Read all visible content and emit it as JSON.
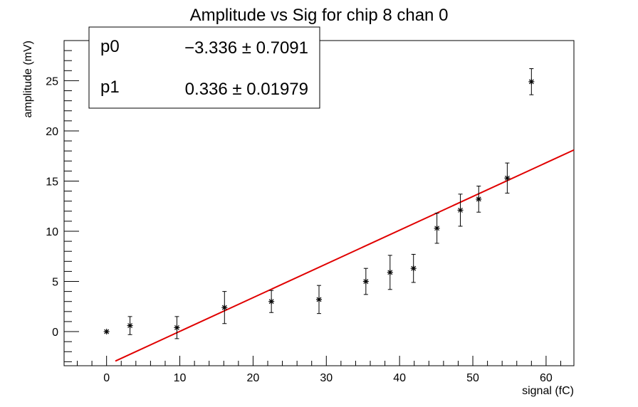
{
  "chart_data": {
    "type": "scatter",
    "title": "Amplitude vs Sig for chip 8 chan 0",
    "xlabel": "signal (fC)",
    "ylabel": "amplitude (mV)",
    "xlim": [
      -5.8,
      63.8
    ],
    "ylim": [
      -3.4,
      29.0
    ],
    "x_ticks": [
      0,
      10,
      20,
      30,
      40,
      50,
      60
    ],
    "y_ticks": [
      0,
      5,
      10,
      15,
      20,
      25
    ],
    "x_tick_labels": [
      "0",
      "10",
      "20",
      "30",
      "40",
      "50",
      "60"
    ],
    "y_tick_labels": [
      "0",
      "5",
      "10",
      "15",
      "20",
      "25"
    ],
    "grid": false,
    "legend": "none",
    "series": [
      {
        "marker_color": "#000000",
        "points": [
          {
            "x": 0.0,
            "y": 0.0,
            "err": 0.0
          },
          {
            "x": 3.2,
            "y": 0.6,
            "err": 0.9
          },
          {
            "x": 9.6,
            "y": 0.4,
            "err": 1.1
          },
          {
            "x": 16.1,
            "y": 2.4,
            "err": 1.6
          },
          {
            "x": 22.5,
            "y": 3.0,
            "err": 1.1
          },
          {
            "x": 29.0,
            "y": 3.2,
            "err": 1.4
          },
          {
            "x": 35.4,
            "y": 5.0,
            "err": 1.3
          },
          {
            "x": 38.7,
            "y": 5.9,
            "err": 1.7
          },
          {
            "x": 41.9,
            "y": 6.3,
            "err": 1.4
          },
          {
            "x": 45.1,
            "y": 10.3,
            "err": 1.5
          },
          {
            "x": 48.3,
            "y": 12.1,
            "err": 1.6
          },
          {
            "x": 50.8,
            "y": 13.2,
            "err": 1.3
          },
          {
            "x": 54.7,
            "y": 15.3,
            "err": 1.5
          },
          {
            "x": 58.0,
            "y": 24.9,
            "err": 1.3
          }
        ]
      }
    ],
    "fit": {
      "color": "#e00000",
      "x_range": [
        1.2,
        63.8
      ],
      "p0": -3.336,
      "p1": 0.336
    },
    "stats_box": {
      "rows": [
        {
          "name": "p0",
          "value": "−3.336 ± 0.7091"
        },
        {
          "name": "p1",
          "value": "0.336 ± 0.01979"
        }
      ]
    }
  }
}
